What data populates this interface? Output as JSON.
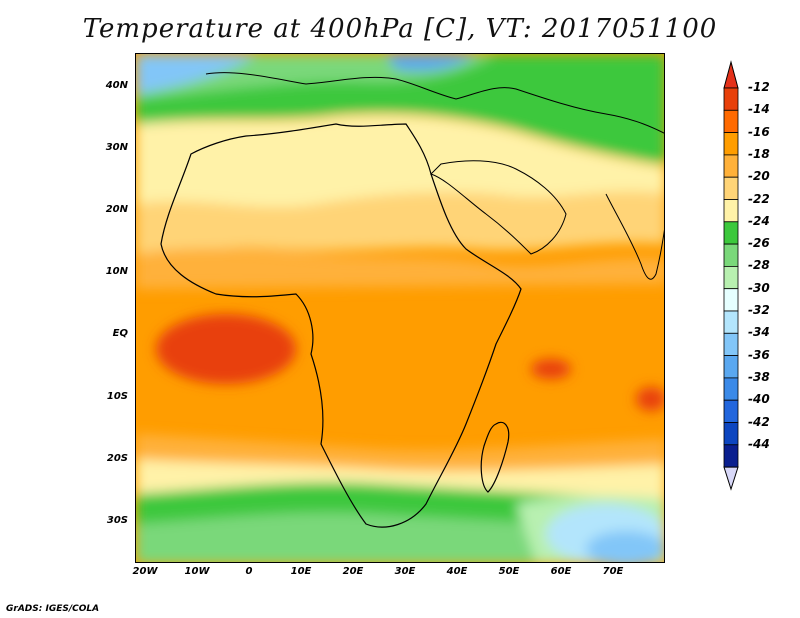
{
  "title": "Temperature at 400hPa [C], VT: 2017051100",
  "footer": "GrADS: IGES/COLA",
  "map": {
    "lat_labels": [
      "40N",
      "30N",
      "20N",
      "10N",
      "EQ",
      "10S",
      "20S",
      "30S"
    ],
    "lon_labels": [
      "20W",
      "10W",
      "0",
      "10E",
      "20E",
      "30E",
      "40E",
      "50E",
      "60E",
      "70E"
    ]
  },
  "colorbar": {
    "labels": [
      "-12",
      "-14",
      "-16",
      "-18",
      "-20",
      "-22",
      "-24",
      "-26",
      "-28",
      "-30",
      "-32",
      "-34",
      "-36",
      "-38",
      "-40",
      "-42",
      "-44"
    ],
    "colors": [
      "#e8400a",
      "#ff6a00",
      "#ff9d00",
      "#ffb13a",
      "#ffd477",
      "#fff2a8",
      "#3cc83c",
      "#7ad87a",
      "#b8f0b0",
      "#e6ffff",
      "#b3e5fc",
      "#82c6f8",
      "#5aa8f0",
      "#3b8ae8",
      "#2266dd",
      "#0d46c0",
      "#0a1f8f"
    ],
    "top_arrow_color": "#e4311a",
    "bottom_arrow_color": "#d8d8f8"
  }
}
